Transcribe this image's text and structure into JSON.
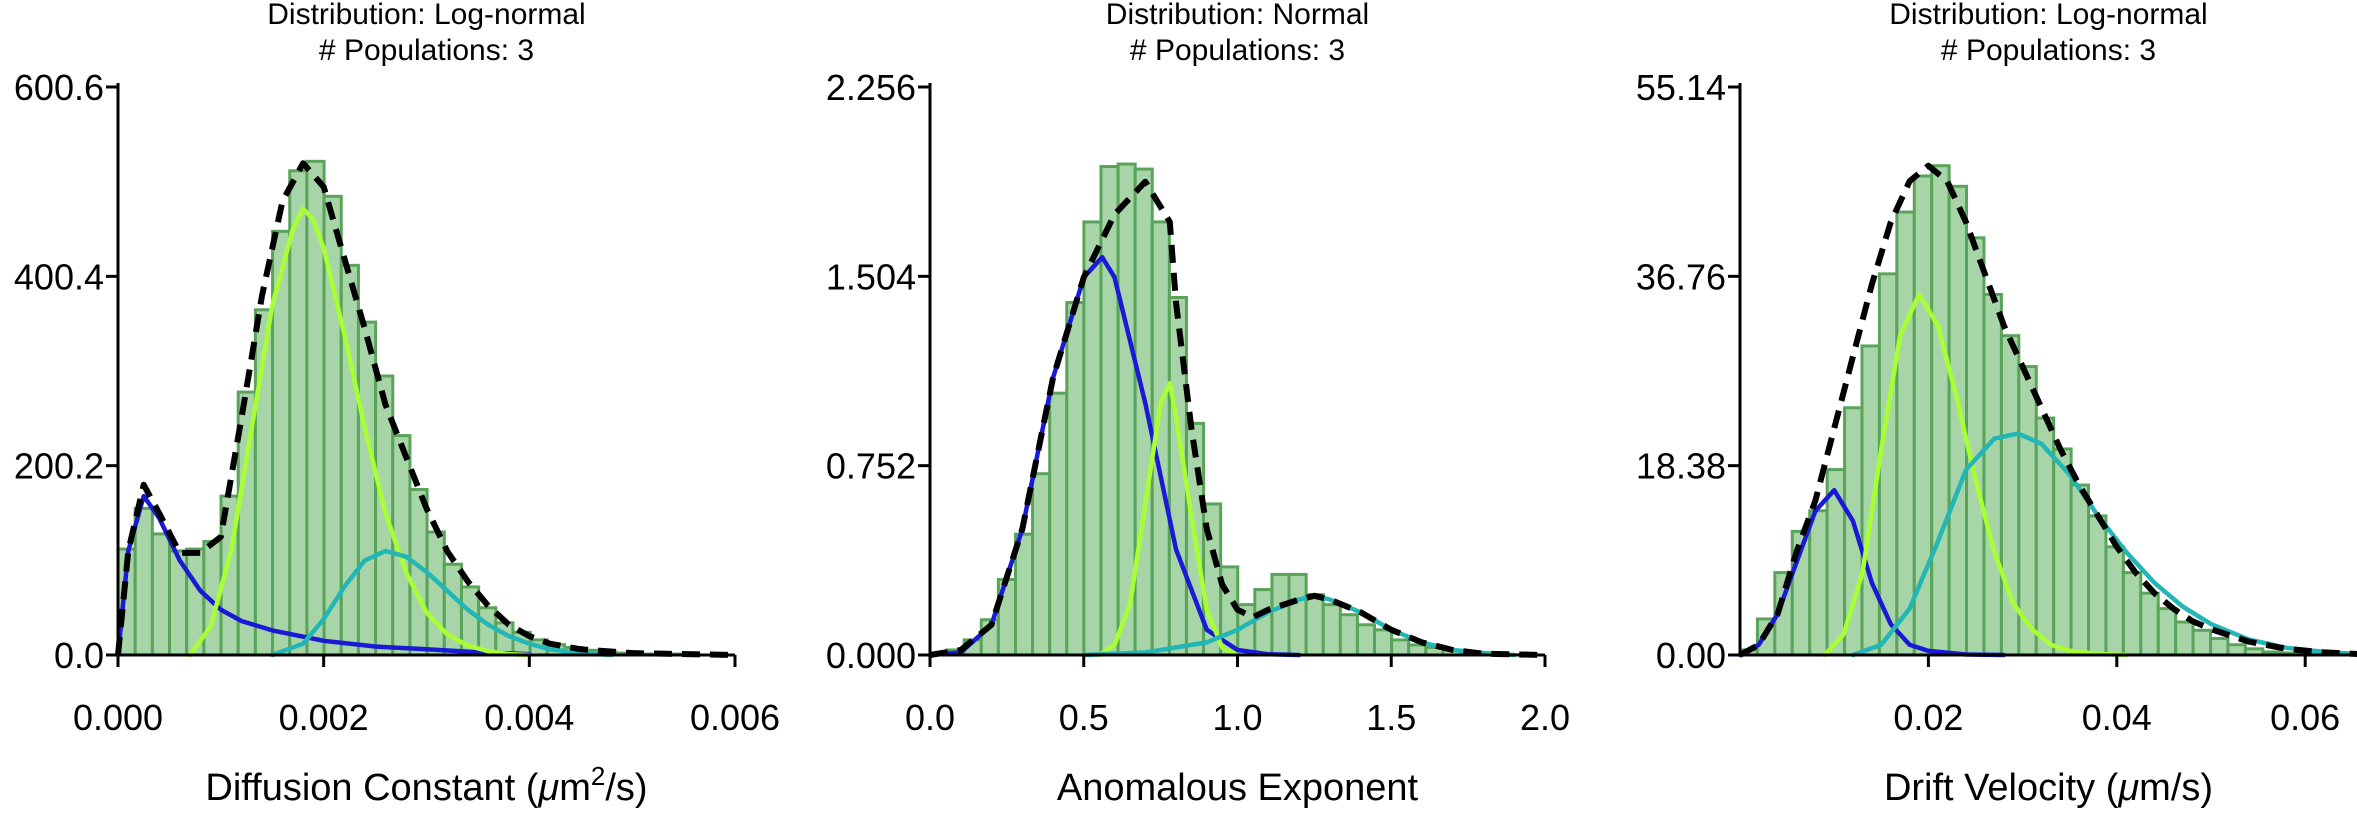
{
  "chart_data": [
    {
      "type": "bar",
      "title_lines": [
        "Distribution: Log-normal",
        "# Populations: 3"
      ],
      "xlabel_parts": [
        "Diffusion Constant (",
        "μ",
        "m",
        "2",
        "/s)"
      ],
      "xlim": [
        0,
        0.006
      ],
      "ylim": [
        0,
        600.6
      ],
      "xticks": [
        0,
        0.002,
        0.004,
        0.006
      ],
      "xtick_labels": [
        "0.000",
        "0.002",
        "0.004",
        "0.006"
      ],
      "yticks": [
        0,
        200.2,
        400.4,
        600.6
      ],
      "ytick_labels": [
        "0.0",
        "200.2",
        "400.4",
        "600.6"
      ],
      "bin_width": 0.000167,
      "bins": {
        "x": [
          8.35e-05,
          0.0002505,
          0.0004175,
          0.0005845,
          0.0007515,
          0.0009185,
          0.0010855,
          0.0012525,
          0.0014195,
          0.0015865,
          0.0017535,
          0.0019205,
          0.0020875,
          0.0022545,
          0.0024215,
          0.0025885,
          0.0027555,
          0.0029225,
          0.0030895,
          0.0032565,
          0.0034235,
          0.0035905,
          0.0037575,
          0.0039245,
          0.0040915,
          0.0042585,
          0.0044255,
          0.0045925,
          0.0047595,
          0.0049265,
          0.0050935,
          0.0052605,
          0.0054275
        ],
        "values": [
          112,
          155,
          128,
          110,
          112,
          120,
          168,
          278,
          365,
          448,
          512,
          522,
          485,
          412,
          352,
          295,
          232,
          175,
          130,
          96,
          72,
          50,
          34,
          24,
          16,
          11,
          8,
          5,
          3,
          2,
          1,
          1,
          1
        ]
      },
      "series": [
        {
          "name": "",
          "color": "#1a1ad6",
          "dashed": false,
          "x": [
            0,
            0.0001,
            0.00025,
            0.0004,
            0.0006,
            0.0008,
            0.001,
            0.0012,
            0.0015,
            0.002,
            0.0025,
            0.003,
            0.0035,
            0.004
          ],
          "y": [
            0,
            110,
            168,
            145,
            100,
            68,
            48,
            36,
            26,
            15,
            9,
            6,
            3,
            1
          ]
        },
        {
          "name": "",
          "color": "#a8ff33",
          "dashed": false,
          "x": [
            0.0007,
            0.0009,
            0.0011,
            0.0013,
            0.0015,
            0.0017,
            0.0018,
            0.0019,
            0.002,
            0.0022,
            0.0024,
            0.0026,
            0.0028,
            0.003,
            0.0032,
            0.0034,
            0.0036,
            0.0038,
            0.004
          ],
          "y": [
            0,
            30,
            110,
            240,
            370,
            450,
            472,
            460,
            430,
            340,
            240,
            150,
            88,
            45,
            22,
            10,
            4,
            1,
            0
          ]
        },
        {
          "name": "",
          "color": "#22b6b6",
          "dashed": false,
          "x": [
            0.0015,
            0.0018,
            0.002,
            0.0022,
            0.0024,
            0.0026,
            0.0028,
            0.003,
            0.0032,
            0.0034,
            0.0036,
            0.0038,
            0.004,
            0.0042,
            0.0045,
            0.0048
          ],
          "y": [
            0,
            12,
            38,
            72,
            100,
            110,
            104,
            88,
            68,
            48,
            32,
            20,
            12,
            6,
            2,
            0
          ]
        },
        {
          "name": "",
          "color": "#000000",
          "dashed": true,
          "x": [
            0,
            0.0001,
            0.00025,
            0.0004,
            0.0006,
            0.0008,
            0.001,
            0.0012,
            0.0014,
            0.0016,
            0.0018,
            0.002,
            0.0022,
            0.0024,
            0.0026,
            0.0028,
            0.003,
            0.0032,
            0.0034,
            0.0036,
            0.0038,
            0.004,
            0.0042,
            0.0045,
            0.005,
            0.006
          ],
          "y": [
            0,
            110,
            180,
            150,
            108,
            108,
            125,
            250,
            380,
            480,
            520,
            495,
            420,
            345,
            265,
            210,
            155,
            110,
            78,
            52,
            32,
            20,
            12,
            6,
            2,
            0
          ]
        }
      ]
    },
    {
      "type": "bar",
      "title_lines": [
        "Distribution: Normal",
        "# Populations: 3"
      ],
      "xlabel_parts": [
        "Anomalous Exponent"
      ],
      "xlim": [
        0,
        2.0
      ],
      "ylim": [
        0,
        2.256
      ],
      "xticks": [
        0,
        0.5,
        1.0,
        1.5,
        2.0
      ],
      "xtick_labels": [
        "0.0",
        "0.5",
        "1.0",
        "1.5",
        "2.0"
      ],
      "yticks": [
        0,
        0.752,
        1.504,
        2.256
      ],
      "ytick_labels": [
        "0.000",
        "0.752",
        "1.504",
        "2.256"
      ],
      "bin_width": 0.0556,
      "bins": {
        "x": [
          0.0278,
          0.0834,
          0.139,
          0.1946,
          0.2502,
          0.3058,
          0.3614,
          0.417,
          0.4726,
          0.5282,
          0.5838,
          0.6394,
          0.695,
          0.7506,
          0.8062,
          0.8618,
          0.9174,
          0.973,
          1.0286,
          1.0842,
          1.1398,
          1.1954,
          1.251,
          1.3066,
          1.3622,
          1.4178,
          1.4734,
          1.529,
          1.5846,
          1.6402,
          1.6958,
          1.7514,
          1.807,
          1.8626,
          1.9182
        ],
        "values": [
          0.005,
          0.02,
          0.06,
          0.14,
          0.3,
          0.48,
          0.72,
          1.04,
          1.4,
          1.72,
          1.94,
          1.95,
          1.93,
          1.72,
          1.42,
          0.92,
          0.6,
          0.35,
          0.2,
          0.26,
          0.32,
          0.32,
          0.24,
          0.2,
          0.16,
          0.12,
          0.1,
          0.06,
          0.04,
          0.03,
          0.02,
          0.01,
          0.005,
          0.003,
          0.001
        ]
      },
      "series": [
        {
          "name": "",
          "color": "#1a1ad6",
          "dashed": false,
          "x": [
            0,
            0.1,
            0.2,
            0.3,
            0.4,
            0.5,
            0.56,
            0.6,
            0.7,
            0.8,
            0.9,
            1.0,
            1.1,
            1.2
          ],
          "y": [
            0,
            0.01,
            0.12,
            0.5,
            1.1,
            1.5,
            1.58,
            1.5,
            1.0,
            0.42,
            0.1,
            0.02,
            0.003,
            0
          ]
        },
        {
          "name": "",
          "color": "#a8ff33",
          "dashed": false,
          "x": [
            0.55,
            0.6,
            0.65,
            0.7,
            0.75,
            0.78,
            0.8,
            0.85,
            0.9,
            0.95,
            1.0
          ],
          "y": [
            0,
            0.04,
            0.2,
            0.6,
            1.0,
            1.08,
            0.95,
            0.55,
            0.18,
            0.03,
            0
          ]
        },
        {
          "name": "",
          "color": "#22b6b6",
          "dashed": false,
          "x": [
            0.5,
            0.7,
            0.9,
            1.0,
            1.1,
            1.2,
            1.25,
            1.3,
            1.4,
            1.5,
            1.6,
            1.7,
            1.8,
            1.9
          ],
          "y": [
            0,
            0.01,
            0.05,
            0.1,
            0.17,
            0.22,
            0.235,
            0.22,
            0.17,
            0.1,
            0.05,
            0.02,
            0.008,
            0
          ]
        },
        {
          "name": "",
          "color": "#000000",
          "dashed": true,
          "x": [
            0,
            0.1,
            0.2,
            0.3,
            0.4,
            0.5,
            0.6,
            0.7,
            0.78,
            0.8,
            0.85,
            0.9,
            0.95,
            1.0,
            1.05,
            1.1,
            1.2,
            1.25,
            1.3,
            1.4,
            1.5,
            1.6,
            1.7,
            1.8,
            2.0
          ],
          "y": [
            0,
            0.02,
            0.12,
            0.5,
            1.1,
            1.5,
            1.75,
            1.88,
            1.72,
            1.4,
            0.9,
            0.5,
            0.28,
            0.18,
            0.15,
            0.18,
            0.22,
            0.235,
            0.22,
            0.17,
            0.1,
            0.05,
            0.02,
            0.005,
            0
          ]
        }
      ]
    },
    {
      "type": "bar",
      "title_lines": [
        "Distribution: Log-normal",
        "# Populations: 3"
      ],
      "xlabel_parts": [
        "Drift Velocity (",
        "μ",
        "m/s)"
      ],
      "xlim": [
        0,
        0.0655
      ],
      "ylim": [
        0,
        55.14
      ],
      "xticks": [
        0.02,
        0.04,
        0.06
      ],
      "xtick_labels": [
        "0.02",
        "0.04",
        "0.06"
      ],
      "yticks": [
        0,
        18.38,
        36.76,
        55.14
      ],
      "ytick_labels": [
        "0.00",
        "18.38",
        "36.76",
        "55.14"
      ],
      "bin_width": 0.00185,
      "bins": {
        "x": [
          0.000925,
          0.002775,
          0.004625,
          0.006475,
          0.008325,
          0.010175,
          0.012025,
          0.013875,
          0.015725,
          0.017575,
          0.019425,
          0.021275,
          0.023125,
          0.024975,
          0.026825,
          0.028675,
          0.030525,
          0.032375,
          0.034225,
          0.036075,
          0.037925,
          0.039775,
          0.041625,
          0.043475,
          0.045325,
          0.047175,
          0.049025,
          0.050875,
          0.052725,
          0.054575,
          0.056425,
          0.058275,
          0.060125,
          0.061975,
          0.063825
        ],
        "values": [
          0.5,
          3.5,
          8,
          12,
          14,
          18,
          24,
          30,
          37,
          43,
          46.5,
          47.5,
          45.5,
          40.5,
          35,
          31,
          28,
          23,
          20,
          16.5,
          13.5,
          10.5,
          8,
          6,
          4.5,
          3.2,
          2.4,
          1.6,
          1.0,
          0.6,
          0.3,
          0.2,
          0.1,
          0.05,
          0.02
        ]
      },
      "series": [
        {
          "name": "",
          "color": "#1a1ad6",
          "dashed": false,
          "x": [
            0,
            0.002,
            0.004,
            0.006,
            0.008,
            0.01,
            0.012,
            0.014,
            0.016,
            0.018,
            0.02,
            0.024,
            0.028
          ],
          "y": [
            0,
            1,
            4,
            9,
            14,
            16,
            13,
            7,
            3,
            1,
            0.4,
            0.05,
            0
          ]
        },
        {
          "name": "",
          "color": "#a8ff33",
          "dashed": false,
          "x": [
            0.009,
            0.011,
            0.013,
            0.015,
            0.017,
            0.019,
            0.021,
            0.023,
            0.025,
            0.027,
            0.029,
            0.031,
            0.033,
            0.035,
            0.038,
            0.041
          ],
          "y": [
            0,
            2,
            8,
            20,
            31,
            35,
            32,
            25,
            17,
            10,
            5,
            2.5,
            1,
            0.4,
            0.1,
            0
          ]
        },
        {
          "name": "",
          "color": "#22b6b6",
          "dashed": false,
          "x": [
            0.012,
            0.015,
            0.018,
            0.021,
            0.024,
            0.027,
            0.0295,
            0.032,
            0.035,
            0.038,
            0.041,
            0.044,
            0.047,
            0.05,
            0.054,
            0.058,
            0.062,
            0.0655
          ],
          "y": [
            0,
            1,
            4.5,
            11,
            18,
            21,
            21.5,
            20.5,
            17.5,
            13.5,
            10,
            7,
            4.7,
            3,
            1.5,
            0.7,
            0.3,
            0.1
          ]
        },
        {
          "name": "",
          "color": "#000000",
          "dashed": true,
          "x": [
            0,
            0.002,
            0.004,
            0.006,
            0.008,
            0.01,
            0.012,
            0.014,
            0.016,
            0.018,
            0.02,
            0.022,
            0.024,
            0.026,
            0.028,
            0.03,
            0.032,
            0.034,
            0.036,
            0.038,
            0.04,
            0.042,
            0.044,
            0.046,
            0.048,
            0.05,
            0.054,
            0.058,
            0.062,
            0.0655
          ],
          "y": [
            0,
            1,
            4,
            10,
            15,
            22,
            29,
            36,
            42,
            46,
            47.5,
            46,
            42,
            37,
            32,
            28,
            24,
            20,
            16.5,
            13.5,
            10.5,
            8,
            6,
            4.5,
            3.3,
            2.5,
            1.3,
            0.6,
            0.25,
            0.1
          ]
        }
      ]
    }
  ]
}
